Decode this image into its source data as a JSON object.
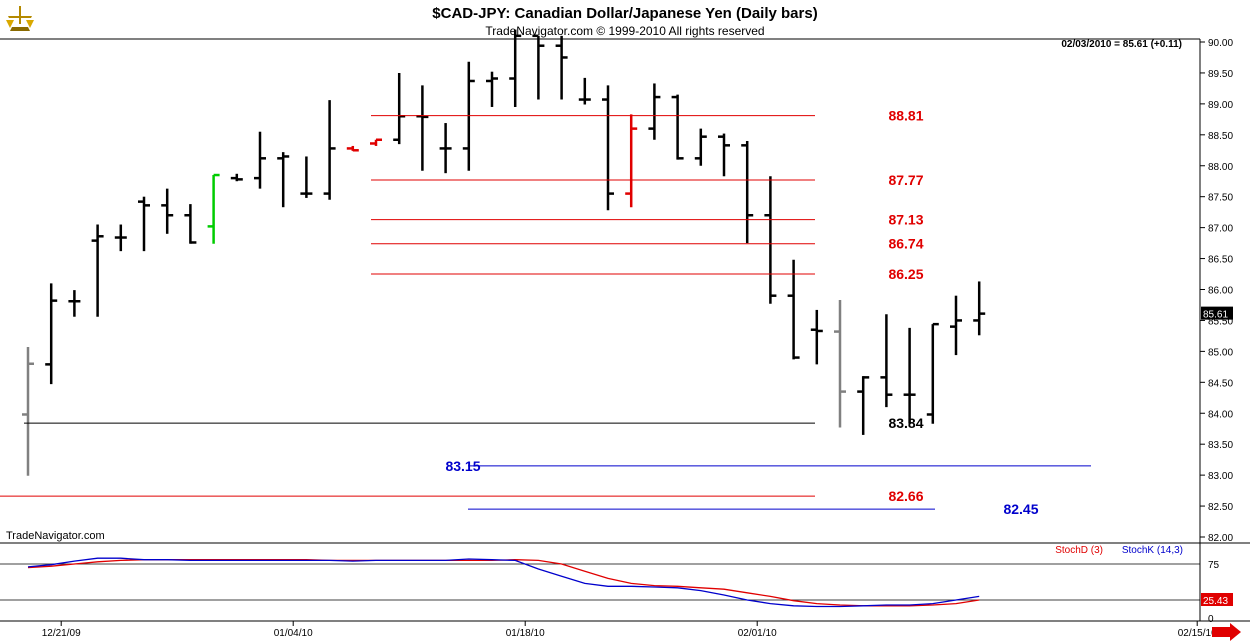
{
  "header": {
    "title": "$CAD-JPY:  Canadian Dollar/Japanese Yen  (Daily bars)",
    "subtitle": "TradeNavigator.com © 1999-2010 All rights reserved",
    "quote": "02/03/2010 = 85.61 (+0.11)",
    "watermark": "TradeNavigator.com"
  },
  "colors": {
    "bar": "#000000",
    "bar_red": "#e00000",
    "bar_green": "#00cc00",
    "bar_gray": "#808080",
    "level_red": "#e00000",
    "level_black": "#000000",
    "level_blue": "#0000cc",
    "stoch_d": "#e00000",
    "stoch_k": "#0000cc"
  },
  "chart_data": [
    {
      "type": "ohlc",
      "title": "$CAD-JPY:  Canadian Dollar/Japanese Yen  (Daily bars)",
      "ylim": [
        82.0,
        90.1
      ],
      "y_ticks": [
        "90.00",
        "89.50",
        "89.00",
        "88.50",
        "88.00",
        "87.50",
        "87.00",
        "86.50",
        "86.00",
        "85.50",
        "85.00",
        "84.50",
        "84.00",
        "83.50",
        "83.00",
        "82.50",
        "82.00"
      ],
      "x_ticks": [
        "12/21/09",
        "01/04/10",
        "01/18/10",
        "02/01/10",
        "02/15/10"
      ],
      "last_price_label": "85.61",
      "bars": [
        {
          "high": 85.07,
          "low": 82.99,
          "open": 83.98,
          "close": 84.8,
          "color": "gray"
        },
        {
          "high": 86.1,
          "low": 84.47,
          "open": 84.79,
          "close": 85.82,
          "color": "black"
        },
        {
          "high": 85.99,
          "low": 85.56,
          "open": 85.81,
          "close": 85.81,
          "color": "black"
        },
        {
          "high": 87.05,
          "low": 85.56,
          "open": 86.79,
          "close": 86.86,
          "color": "black"
        },
        {
          "high": 87.05,
          "low": 86.62,
          "open": 86.84,
          "close": 86.84,
          "color": "black"
        },
        {
          "high": 87.5,
          "low": 86.62,
          "open": 87.42,
          "close": 87.36,
          "color": "black"
        },
        {
          "high": 87.63,
          "low": 86.9,
          "open": 87.36,
          "close": 87.2,
          "color": "black"
        },
        {
          "high": 87.38,
          "low": 86.74,
          "open": 87.2,
          "close": 86.76,
          "color": "black"
        },
        {
          "high": 87.85,
          "low": 86.74,
          "open": 87.02,
          "close": 87.85,
          "color": "green"
        },
        {
          "high": 87.87,
          "low": 87.75,
          "open": 87.8,
          "close": 87.78,
          "color": "black"
        },
        {
          "high": 88.55,
          "low": 87.63,
          "open": 87.8,
          "close": 88.12,
          "color": "black"
        },
        {
          "high": 88.22,
          "low": 87.33,
          "open": 88.12,
          "close": 88.15,
          "color": "black"
        },
        {
          "high": 88.15,
          "low": 87.48,
          "open": 87.55,
          "close": 87.55,
          "color": "black"
        },
        {
          "high": 89.06,
          "low": 87.45,
          "open": 87.55,
          "close": 88.28,
          "color": "black"
        },
        {
          "high": 88.32,
          "low": 88.24,
          "open": 88.28,
          "close": 88.25,
          "color": "red"
        },
        {
          "high": 88.42,
          "low": 88.32,
          "open": 88.36,
          "close": 88.42,
          "color": "red"
        },
        {
          "high": 89.5,
          "low": 88.35,
          "open": 88.42,
          "close": 88.8,
          "color": "black"
        },
        {
          "high": 89.3,
          "low": 87.92,
          "open": 88.8,
          "close": 88.79,
          "color": "black"
        },
        {
          "high": 88.69,
          "low": 87.88,
          "open": 88.28,
          "close": 88.28,
          "color": "black"
        },
        {
          "high": 89.68,
          "low": 87.92,
          "open": 88.28,
          "close": 89.37,
          "color": "black"
        },
        {
          "high": 89.52,
          "low": 88.95,
          "open": 89.37,
          "close": 89.41,
          "color": "black"
        },
        {
          "high": 90.2,
          "low": 88.95,
          "open": 89.41,
          "close": 90.1,
          "color": "black"
        },
        {
          "high": 90.1,
          "low": 89.07,
          "open": 90.1,
          "close": 89.94,
          "color": "black"
        },
        {
          "high": 90.1,
          "low": 89.07,
          "open": 89.94,
          "close": 89.75,
          "color": "black"
        },
        {
          "high": 89.42,
          "low": 88.99,
          "open": 89.07,
          "close": 89.07,
          "color": "black"
        },
        {
          "high": 89.3,
          "low": 87.28,
          "open": 89.07,
          "close": 87.55,
          "color": "black"
        },
        {
          "high": 88.83,
          "low": 87.33,
          "open": 87.55,
          "close": 88.6,
          "color": "red"
        },
        {
          "high": 89.33,
          "low": 88.42,
          "open": 88.6,
          "close": 89.11,
          "color": "black"
        },
        {
          "high": 89.15,
          "low": 88.1,
          "open": 89.11,
          "close": 88.12,
          "color": "black"
        },
        {
          "high": 88.6,
          "low": 88.0,
          "open": 88.12,
          "close": 88.47,
          "color": "black"
        },
        {
          "high": 88.52,
          "low": 87.83,
          "open": 88.47,
          "close": 88.33,
          "color": "black"
        },
        {
          "high": 88.4,
          "low": 86.75,
          "open": 88.33,
          "close": 87.2,
          "color": "black"
        },
        {
          "high": 87.83,
          "low": 85.77,
          "open": 87.2,
          "close": 85.9,
          "color": "black"
        },
        {
          "high": 86.48,
          "low": 84.87,
          "open": 85.9,
          "close": 84.9,
          "color": "black"
        },
        {
          "high": 85.67,
          "low": 84.79,
          "open": 85.35,
          "close": 85.33,
          "color": "black"
        },
        {
          "high": 85.83,
          "low": 83.77,
          "open": 85.32,
          "close": 84.35,
          "color": "gray"
        },
        {
          "high": 84.6,
          "low": 83.65,
          "open": 84.35,
          "close": 84.58,
          "color": "black"
        },
        {
          "high": 85.6,
          "low": 84.1,
          "open": 84.58,
          "close": 84.3,
          "color": "black"
        },
        {
          "high": 85.38,
          "low": 83.83,
          "open": 84.3,
          "close": 84.3,
          "color": "black"
        },
        {
          "high": 85.44,
          "low": 83.83,
          "open": 83.98,
          "close": 85.44,
          "color": "black"
        },
        {
          "high": 85.9,
          "low": 84.94,
          "open": 85.4,
          "close": 85.5,
          "color": "black"
        },
        {
          "high": 86.13,
          "low": 85.26,
          "open": 85.5,
          "close": 85.61,
          "color": "black"
        }
      ],
      "levels": [
        {
          "value": 88.81,
          "label": "88.81",
          "color": "red",
          "x_from": 0.3,
          "x_to": 0.7
        },
        {
          "value": 87.77,
          "label": "87.77",
          "color": "red",
          "x_from": 0.3,
          "x_to": 0.7
        },
        {
          "value": 87.13,
          "label": "87.13",
          "color": "red",
          "x_from": 0.3,
          "x_to": 0.7
        },
        {
          "value": 86.74,
          "label": "86.74",
          "color": "red",
          "x_from": 0.3,
          "x_to": 0.7
        },
        {
          "value": 86.25,
          "label": "86.25",
          "color": "red",
          "x_from": 0.3,
          "x_to": 0.7
        },
        {
          "value": 83.84,
          "label": "83.84",
          "color": "black",
          "x_from": 0.02,
          "x_to": 0.7
        },
        {
          "value": 83.15,
          "label": "83.15",
          "color": "blue",
          "x_from": 0.39,
          "x_to": 0.93
        },
        {
          "value": 82.66,
          "label": "82.66",
          "color": "red",
          "x_from": 0.0,
          "x_to": 0.7
        },
        {
          "value": 82.45,
          "label": "82.45",
          "color": "blue",
          "x_from": 0.39,
          "x_to": 0.8
        }
      ]
    },
    {
      "type": "line",
      "ylim": [
        0,
        100
      ],
      "y_ticks": [
        "75",
        "0"
      ],
      "reference_lines": [
        75,
        25
      ],
      "last_values": [
        "25.43"
      ],
      "series": [
        {
          "name": "StochD (3)",
          "color": "red",
          "values": [
            70,
            72,
            75,
            78,
            80,
            81,
            81,
            81,
            81,
            81,
            81,
            81,
            81,
            80,
            80,
            80,
            80,
            80,
            80,
            80,
            80,
            81,
            80,
            75,
            65,
            55,
            48,
            45,
            44,
            42,
            40,
            35,
            30,
            24,
            20,
            18,
            17,
            17,
            17,
            18,
            20,
            25
          ]
        },
        {
          "name": "StochK (14,3)",
          "color": "blue",
          "values": [
            71,
            74,
            79,
            83,
            83,
            81,
            81,
            80,
            80,
            80,
            80,
            80,
            80,
            80,
            79,
            80,
            80,
            80,
            80,
            82,
            81,
            80,
            68,
            58,
            48,
            44,
            44,
            43,
            42,
            38,
            32,
            25,
            20,
            17,
            16,
            16,
            17,
            18,
            18,
            20,
            25,
            30
          ]
        }
      ]
    }
  ]
}
